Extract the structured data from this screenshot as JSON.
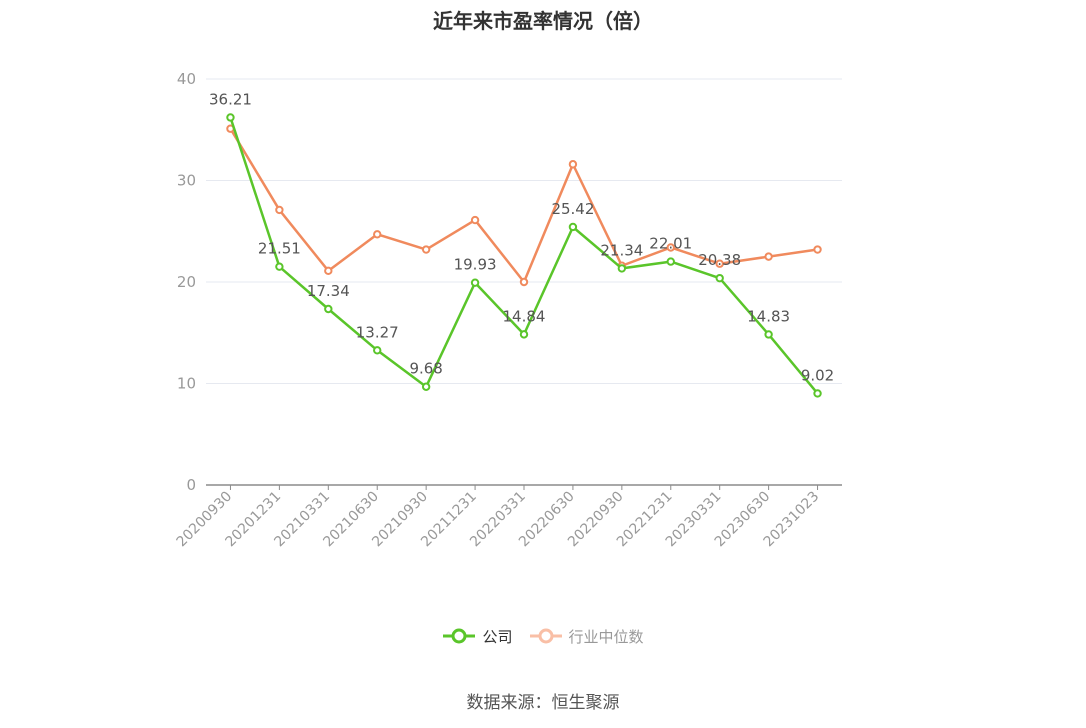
{
  "title": "近年来市盈率情况（倍）",
  "source": "数据来源：恒生聚源",
  "colors": {
    "company": "#5ac52a",
    "industry": "#f08a5d",
    "grid": "#e6e9f0",
    "axis": "#8c8c8c",
    "text": "#999999"
  },
  "chart_data": {
    "type": "line",
    "title": "近年来市盈率情况（倍）",
    "categories": [
      "20200930",
      "20201231",
      "20210331",
      "20210630",
      "20210930",
      "20211231",
      "20220331",
      "20220630",
      "20220930",
      "20221231",
      "20230331",
      "20230630",
      "20231023"
    ],
    "ylim": [
      0,
      40
    ],
    "yticks": [
      0,
      10,
      20,
      30,
      40
    ],
    "grid": true,
    "legend_position": "bottom",
    "series": [
      {
        "name": "公司",
        "values": [
          36.21,
          21.51,
          17.34,
          13.27,
          9.68,
          19.93,
          14.84,
          25.42,
          21.34,
          22.01,
          20.38,
          14.83,
          9.02
        ],
        "labels": [
          "36.21",
          "21.51",
          "17.34",
          "13.27",
          "9.68",
          "19.93",
          "14.84",
          "25.42",
          "21.34",
          "22.01",
          "20.38",
          "14.83",
          "9.02"
        ]
      },
      {
        "name": "行业中位数",
        "values": [
          35.1,
          27.1,
          21.1,
          24.7,
          23.2,
          26.1,
          20.0,
          31.6,
          21.6,
          23.4,
          21.8,
          22.5,
          23.2
        ]
      }
    ]
  }
}
